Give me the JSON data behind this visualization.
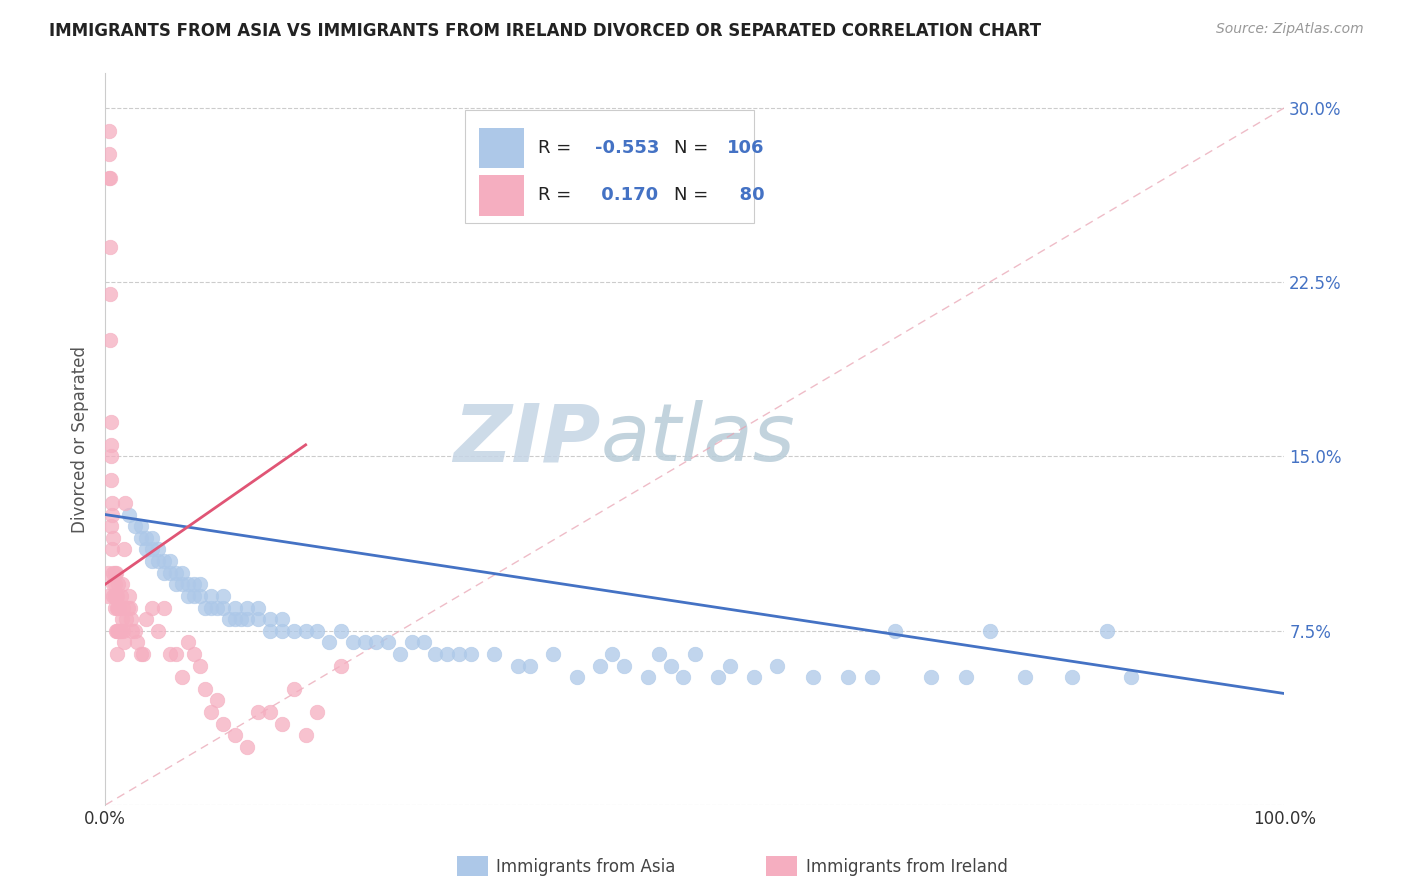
{
  "title": "IMMIGRANTS FROM ASIA VS IMMIGRANTS FROM IRELAND DIVORCED OR SEPARATED CORRELATION CHART",
  "source": "Source: ZipAtlas.com",
  "ylabel": "Divorced or Separated",
  "yticks": [
    0.0,
    0.075,
    0.15,
    0.225,
    0.3
  ],
  "ytick_labels": [
    "",
    "7.5%",
    "15.0%",
    "22.5%",
    "30.0%"
  ],
  "legend_blue_r": "-0.553",
  "legend_blue_n": "106",
  "legend_pink_r": "0.170",
  "legend_pink_n": "80",
  "legend_label_blue": "Immigrants from Asia",
  "legend_label_pink": "Immigrants from Ireland",
  "blue_color": "#adc8e8",
  "pink_color": "#f5aec0",
  "blue_line_color": "#4472c4",
  "pink_line_color": "#e05575",
  "diag_color": "#e8a0b0",
  "watermark": "ZIPatlas",
  "watermark_color_zip": "#c8d8e8",
  "watermark_color_atlas": "#b8c8d8",
  "blue_scatter_x": [
    0.02,
    0.025,
    0.03,
    0.03,
    0.035,
    0.035,
    0.04,
    0.04,
    0.04,
    0.045,
    0.045,
    0.05,
    0.05,
    0.055,
    0.055,
    0.06,
    0.06,
    0.065,
    0.065,
    0.07,
    0.07,
    0.075,
    0.075,
    0.08,
    0.08,
    0.085,
    0.09,
    0.09,
    0.095,
    0.1,
    0.1,
    0.105,
    0.11,
    0.11,
    0.115,
    0.12,
    0.12,
    0.13,
    0.13,
    0.14,
    0.14,
    0.15,
    0.15,
    0.16,
    0.17,
    0.18,
    0.19,
    0.2,
    0.21,
    0.22,
    0.23,
    0.24,
    0.25,
    0.26,
    0.27,
    0.28,
    0.29,
    0.3,
    0.31,
    0.33,
    0.35,
    0.36,
    0.38,
    0.4,
    0.42,
    0.43,
    0.44,
    0.46,
    0.47,
    0.48,
    0.49,
    0.5,
    0.52,
    0.53,
    0.55,
    0.57,
    0.6,
    0.63,
    0.65,
    0.67,
    0.7,
    0.73,
    0.75,
    0.78,
    0.82,
    0.85,
    0.87
  ],
  "blue_scatter_y": [
    0.125,
    0.12,
    0.115,
    0.12,
    0.11,
    0.115,
    0.105,
    0.11,
    0.115,
    0.105,
    0.11,
    0.1,
    0.105,
    0.1,
    0.105,
    0.095,
    0.1,
    0.095,
    0.1,
    0.09,
    0.095,
    0.09,
    0.095,
    0.09,
    0.095,
    0.085,
    0.085,
    0.09,
    0.085,
    0.085,
    0.09,
    0.08,
    0.08,
    0.085,
    0.08,
    0.08,
    0.085,
    0.08,
    0.085,
    0.075,
    0.08,
    0.075,
    0.08,
    0.075,
    0.075,
    0.075,
    0.07,
    0.075,
    0.07,
    0.07,
    0.07,
    0.07,
    0.065,
    0.07,
    0.07,
    0.065,
    0.065,
    0.065,
    0.065,
    0.065,
    0.06,
    0.06,
    0.065,
    0.055,
    0.06,
    0.065,
    0.06,
    0.055,
    0.065,
    0.06,
    0.055,
    0.065,
    0.055,
    0.06,
    0.055,
    0.06,
    0.055,
    0.055,
    0.055,
    0.075,
    0.055,
    0.055,
    0.075,
    0.055,
    0.055,
    0.075,
    0.055
  ],
  "pink_scatter_x": [
    0.002,
    0.002,
    0.003,
    0.003,
    0.003,
    0.004,
    0.004,
    0.004,
    0.004,
    0.005,
    0.005,
    0.005,
    0.005,
    0.005,
    0.006,
    0.006,
    0.006,
    0.007,
    0.007,
    0.007,
    0.007,
    0.008,
    0.008,
    0.008,
    0.008,
    0.009,
    0.009,
    0.009,
    0.01,
    0.01,
    0.01,
    0.01,
    0.011,
    0.011,
    0.011,
    0.012,
    0.012,
    0.013,
    0.013,
    0.014,
    0.014,
    0.015,
    0.015,
    0.016,
    0.016,
    0.017,
    0.018,
    0.019,
    0.02,
    0.021,
    0.022,
    0.023,
    0.025,
    0.027,
    0.03,
    0.032,
    0.035,
    0.04,
    0.045,
    0.05,
    0.055,
    0.06,
    0.065,
    0.07,
    0.075,
    0.08,
    0.085,
    0.09,
    0.095,
    0.1,
    0.11,
    0.12,
    0.13,
    0.14,
    0.15,
    0.16,
    0.17,
    0.18,
    0.2
  ],
  "pink_scatter_y": [
    0.09,
    0.1,
    0.27,
    0.29,
    0.28,
    0.24,
    0.27,
    0.22,
    0.2,
    0.12,
    0.14,
    0.155,
    0.15,
    0.165,
    0.125,
    0.11,
    0.13,
    0.095,
    0.1,
    0.09,
    0.115,
    0.085,
    0.09,
    0.1,
    0.095,
    0.075,
    0.09,
    0.1,
    0.065,
    0.075,
    0.085,
    0.09,
    0.075,
    0.085,
    0.095,
    0.075,
    0.085,
    0.075,
    0.09,
    0.08,
    0.095,
    0.075,
    0.085,
    0.07,
    0.11,
    0.13,
    0.08,
    0.085,
    0.09,
    0.085,
    0.08,
    0.075,
    0.075,
    0.07,
    0.065,
    0.065,
    0.08,
    0.085,
    0.075,
    0.085,
    0.065,
    0.065,
    0.055,
    0.07,
    0.065,
    0.06,
    0.05,
    0.04,
    0.045,
    0.035,
    0.03,
    0.025,
    0.04,
    0.04,
    0.035,
    0.05,
    0.03,
    0.04,
    0.06
  ]
}
